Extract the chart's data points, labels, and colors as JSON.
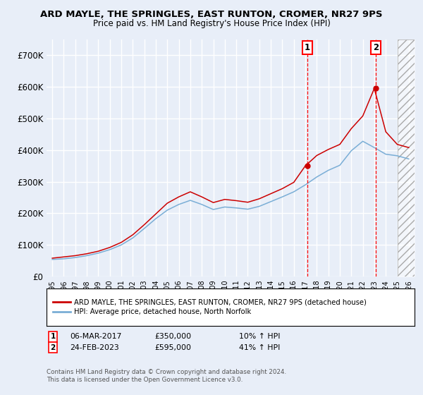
{
  "title": "ARD MAYLE, THE SPRINGLES, EAST RUNTON, CROMER, NR27 9PS",
  "subtitle": "Price paid vs. HM Land Registry's House Price Index (HPI)",
  "ylabel_ticks": [
    "£0",
    "£100K",
    "£200K",
    "£300K",
    "£400K",
    "£500K",
    "£600K",
    "£700K"
  ],
  "ytick_values": [
    0,
    100000,
    200000,
    300000,
    400000,
    500000,
    600000,
    700000
  ],
  "ylim": [
    0,
    750000
  ],
  "xlim_start": 1994.5,
  "xlim_end": 2026.5,
  "background_color": "#e8eef8",
  "plot_bg_color": "#e8eef8",
  "grid_color": "#ffffff",
  "red_line_color": "#cc0000",
  "blue_line_color": "#7aaed6",
  "sale1_x": 2017.17,
  "sale1_y": 350000,
  "sale2_x": 2023.13,
  "sale2_y": 595000,
  "sale1_date": "06-MAR-2017",
  "sale1_price": "£350,000",
  "sale1_hpi": "10% ↑ HPI",
  "sale2_date": "24-FEB-2023",
  "sale2_price": "£595,000",
  "sale2_hpi": "41% ↑ HPI",
  "legend_line1": "ARD MAYLE, THE SPRINGLES, EAST RUNTON, CROMER, NR27 9PS (detached house)",
  "legend_line2": "HPI: Average price, detached house, North Norfolk",
  "footer1": "Contains HM Land Registry data © Crown copyright and database right 2024.",
  "footer2": "This data is licensed under the Open Government Licence v3.0.",
  "hatch_start": 2025.0,
  "hatch_end": 2026.5,
  "x_years": [
    1995,
    1996,
    1997,
    1998,
    1999,
    2000,
    2001,
    2002,
    2003,
    2004,
    2005,
    2006,
    2007,
    2008,
    2009,
    2010,
    2011,
    2012,
    2013,
    2014,
    2015,
    2016,
    2017,
    2018,
    2019,
    2020,
    2021,
    2022,
    2023,
    2024,
    2025,
    2026
  ],
  "hpi_values": [
    54000,
    56000,
    60000,
    66000,
    74000,
    85000,
    100000,
    122000,
    152000,
    183000,
    210000,
    228000,
    241000,
    228000,
    212000,
    220000,
    217000,
    213000,
    222000,
    237000,
    252000,
    268000,
    290000,
    315000,
    336000,
    352000,
    398000,
    428000,
    408000,
    387000,
    382000,
    372000
  ],
  "red_values": [
    58000,
    62000,
    66000,
    72000,
    80000,
    92000,
    108000,
    132000,
    164000,
    198000,
    232000,
    252000,
    268000,
    252000,
    234000,
    244000,
    240000,
    235000,
    246000,
    262000,
    278000,
    298000,
    350000,
    383000,
    402000,
    418000,
    468000,
    508000,
    595000,
    458000,
    418000,
    408000
  ]
}
